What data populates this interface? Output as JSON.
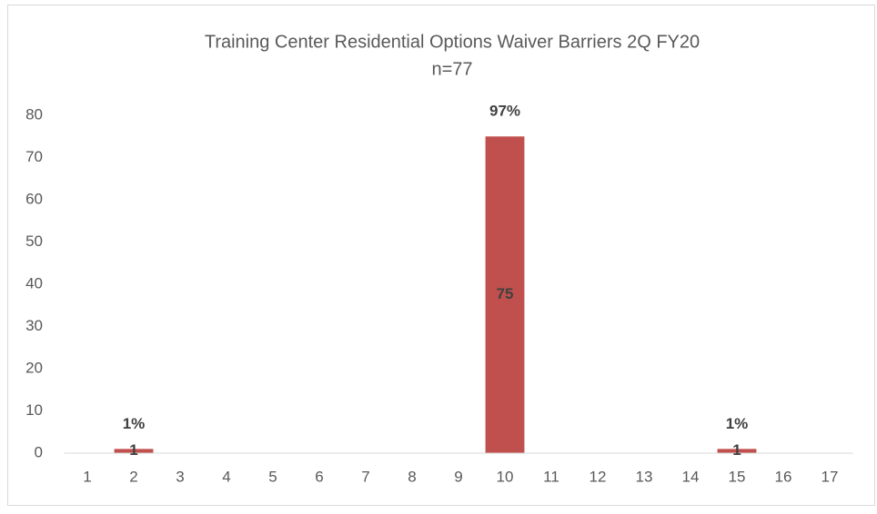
{
  "chart_data": {
    "type": "bar",
    "title": "Training Center Residential Options Waiver Barriers  2Q  FY20",
    "subtitle": "n=77",
    "categories": [
      "1",
      "2",
      "3",
      "4",
      "5",
      "6",
      "7",
      "8",
      "9",
      "10",
      "11",
      "12",
      "13",
      "14",
      "15",
      "16",
      "17"
    ],
    "values": [
      0,
      1,
      0,
      0,
      0,
      0,
      0,
      0,
      0,
      75,
      0,
      0,
      0,
      0,
      1,
      0,
      0
    ],
    "value_labels": [
      null,
      "1",
      null,
      null,
      null,
      null,
      null,
      null,
      null,
      "75",
      null,
      null,
      null,
      null,
      "1",
      null,
      null
    ],
    "percents": [
      null,
      1,
      null,
      null,
      null,
      null,
      null,
      null,
      null,
      97,
      null,
      null,
      null,
      null,
      1,
      null,
      null
    ],
    "percent_labels": [
      null,
      "1%",
      null,
      null,
      null,
      null,
      null,
      null,
      null,
      "97%",
      null,
      null,
      null,
      null,
      "1%",
      null,
      null
    ],
    "color": "#c0504d",
    "ylim": [
      0,
      80
    ],
    "yticks": [
      0,
      10,
      20,
      30,
      40,
      50,
      60,
      70,
      80
    ],
    "grid": false
  }
}
